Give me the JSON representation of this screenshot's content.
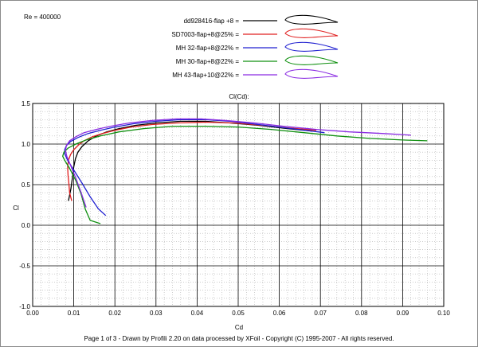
{
  "chart_data": {
    "type": "line",
    "title": "Cl(Cd):",
    "xlabel": "Cd",
    "ylabel": "Cl",
    "xlim": [
      0.0,
      0.1
    ],
    "ylim": [
      -1.0,
      1.5
    ],
    "x_ticks": [
      "0.00",
      "0.01",
      "0.02",
      "0.03",
      "0.04",
      "0.05",
      "0.06",
      "0.07",
      "0.08",
      "0.09",
      "0.10"
    ],
    "y_ticks": [
      "1.5",
      "1.0",
      "0.5",
      "0.0",
      "-0.5",
      "-1.0"
    ],
    "reynolds": "Re = 400000",
    "grid": "on",
    "legend_position": "top",
    "series": [
      {
        "name": "dd928416-flap +8 =",
        "color": "#000000",
        "x": [
          0.0087,
          0.0093,
          0.0097,
          0.01,
          0.0104,
          0.011,
          0.012,
          0.0135,
          0.0155,
          0.018,
          0.021,
          0.025,
          0.03,
          0.036,
          0.042,
          0.048,
          0.055,
          0.062,
          0.068
        ],
        "y": [
          0.3,
          0.45,
          0.6,
          0.72,
          0.82,
          0.9,
          0.97,
          1.04,
          1.1,
          1.15,
          1.19,
          1.23,
          1.26,
          1.28,
          1.28,
          1.26,
          1.23,
          1.19,
          1.16
        ]
      },
      {
        "name": "SD7003-flap+8@25% =",
        "color": "#e02020",
        "x": [
          0.0095,
          0.009,
          0.0088,
          0.0086,
          0.0085,
          0.0087,
          0.0092,
          0.01,
          0.0112,
          0.0125,
          0.0145,
          0.017,
          0.02,
          0.024,
          0.029,
          0.035,
          0.042,
          0.049,
          0.056,
          0.062,
          0.069
        ],
        "y": [
          0.3,
          0.4,
          0.52,
          0.62,
          0.72,
          0.8,
          0.87,
          0.93,
          0.99,
          1.04,
          1.09,
          1.13,
          1.17,
          1.21,
          1.24,
          1.26,
          1.27,
          1.26,
          1.23,
          1.2,
          1.17
        ]
      },
      {
        "name": "MH 32-flap+8@22% =",
        "color": "#2020d0",
        "x": [
          0.0178,
          0.016,
          0.014,
          0.012,
          0.01,
          0.0085,
          0.0078,
          0.0078,
          0.0082,
          0.0092,
          0.011,
          0.0135,
          0.0165,
          0.02,
          0.0245,
          0.03,
          0.036,
          0.042,
          0.048,
          0.055,
          0.063,
          0.071
        ],
        "y": [
          0.12,
          0.2,
          0.35,
          0.52,
          0.68,
          0.8,
          0.88,
          0.93,
          0.98,
          1.03,
          1.08,
          1.13,
          1.17,
          1.21,
          1.25,
          1.28,
          1.3,
          1.3,
          1.28,
          1.24,
          1.19,
          1.14
        ]
      },
      {
        "name": "MH 30-flap+8@22% =",
        "color": "#109010",
        "x": [
          0.0165,
          0.014,
          0.0128,
          0.0118,
          0.0105,
          0.009,
          0.0078,
          0.0073,
          0.0076,
          0.0086,
          0.0105,
          0.013,
          0.0165,
          0.021,
          0.027,
          0.034,
          0.042,
          0.05,
          0.058,
          0.066,
          0.074,
          0.082,
          0.09,
          0.096
        ],
        "y": [
          0.02,
          0.06,
          0.2,
          0.38,
          0.55,
          0.7,
          0.8,
          0.85,
          0.9,
          0.95,
          1.0,
          1.05,
          1.1,
          1.15,
          1.19,
          1.22,
          1.22,
          1.21,
          1.18,
          1.14,
          1.1,
          1.07,
          1.05,
          1.04
        ]
      },
      {
        "name": "MH 43-flap+10@22% =",
        "color": "#8a2be2",
        "x": [
          0.013,
          0.0118,
          0.0105,
          0.0092,
          0.0083,
          0.008,
          0.0082,
          0.009,
          0.0105,
          0.0125,
          0.0155,
          0.019,
          0.0235,
          0.029,
          0.035,
          0.041,
          0.047,
          0.054,
          0.061,
          0.069,
          0.077,
          0.085,
          0.092
        ],
        "y": [
          0.22,
          0.4,
          0.58,
          0.74,
          0.85,
          0.92,
          0.98,
          1.04,
          1.09,
          1.14,
          1.18,
          1.22,
          1.26,
          1.29,
          1.31,
          1.31,
          1.29,
          1.26,
          1.22,
          1.18,
          1.15,
          1.13,
          1.11
        ]
      }
    ]
  },
  "footer": "Page 1 of 3   -   Drawn by Profili 2.20 on data processed by  XFoil - Copyright (C) 1995-2007 - All rights reserved."
}
